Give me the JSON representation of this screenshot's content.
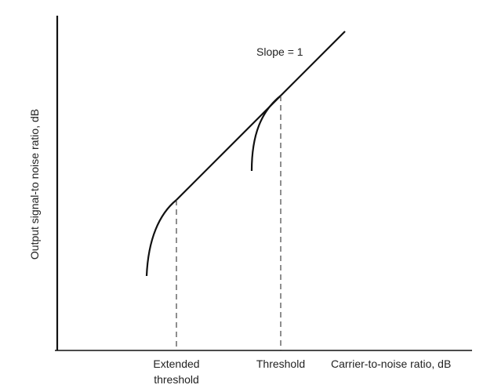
{
  "annotations": {
    "slope": "Slope = 1"
  },
  "axes": {
    "y_label": "Output signal-to noise ratio, dB",
    "x_label": "Carrier-to-noise ratio, dB"
  },
  "markers": {
    "extended_threshold": [
      "Extended",
      "threshold"
    ],
    "threshold": "Threshold"
  }
}
